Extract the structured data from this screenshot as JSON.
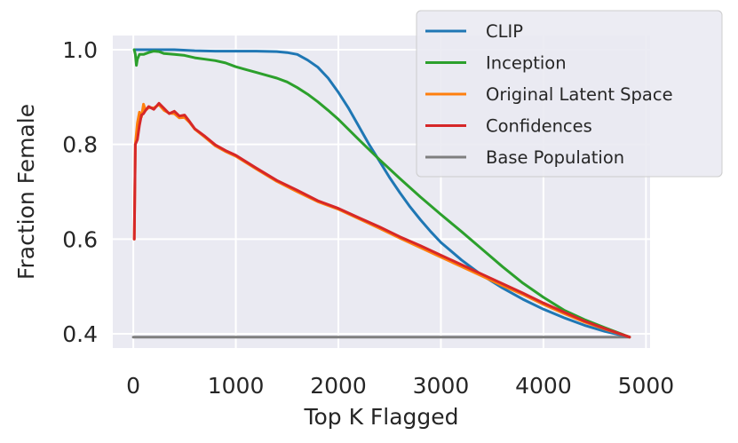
{
  "chart_data": {
    "type": "line",
    "title": "",
    "xlabel": "Top K Flagged",
    "ylabel": "Fraction Female",
    "xlim": [
      -200,
      5040
    ],
    "ylim": [
      0.37,
      1.03
    ],
    "xticks": [
      0,
      1000,
      2000,
      3000,
      4000,
      5000
    ],
    "xtick_labels": [
      "0",
      "1000",
      "2000",
      "3000",
      "4000",
      "5000"
    ],
    "yticks": [
      0.4,
      0.6,
      0.8,
      1.0
    ],
    "ytick_labels": [
      "0.4",
      "0.6",
      "0.8",
      "1.0"
    ],
    "grid": true,
    "legend_position": "upper-right",
    "series": [
      {
        "name": "CLIP",
        "color": "#1f77b4",
        "x": [
          10,
          30,
          100,
          200,
          400,
          600,
          800,
          1000,
          1200,
          1400,
          1500,
          1600,
          1700,
          1800,
          1900,
          2000,
          2100,
          2200,
          2300,
          2400,
          2500,
          2600,
          2700,
          2800,
          2900,
          3000,
          3200,
          3400,
          3600,
          3800,
          4000,
          4200,
          4400,
          4600,
          4840
        ],
        "y": [
          1.0,
          1.0,
          1.0,
          1.0,
          1.0,
          0.998,
          0.997,
          0.997,
          0.997,
          0.996,
          0.994,
          0.99,
          0.978,
          0.963,
          0.94,
          0.91,
          0.876,
          0.838,
          0.8,
          0.765,
          0.73,
          0.698,
          0.668,
          0.641,
          0.616,
          0.593,
          0.556,
          0.524,
          0.497,
          0.473,
          0.452,
          0.434,
          0.418,
          0.405,
          0.393
        ]
      },
      {
        "name": "Inception",
        "color": "#2ca02c",
        "x": [
          10,
          20,
          30,
          40,
          60,
          100,
          150,
          200,
          250,
          300,
          400,
          500,
          600,
          700,
          800,
          900,
          1000,
          1100,
          1200,
          1300,
          1400,
          1500,
          1600,
          1700,
          1800,
          1900,
          2000,
          2200,
          2400,
          2600,
          2800,
          3000,
          3200,
          3400,
          3600,
          3800,
          4000,
          4200,
          4400,
          4600,
          4840
        ],
        "y": [
          1.0,
          0.99,
          0.967,
          0.98,
          0.99,
          0.99,
          0.994,
          0.997,
          0.996,
          0.992,
          0.99,
          0.988,
          0.983,
          0.98,
          0.977,
          0.972,
          0.964,
          0.958,
          0.952,
          0.946,
          0.94,
          0.932,
          0.92,
          0.906,
          0.89,
          0.872,
          0.853,
          0.81,
          0.768,
          0.728,
          0.689,
          0.652,
          0.616,
          0.579,
          0.542,
          0.507,
          0.477,
          0.45,
          0.43,
          0.413,
          0.393
        ]
      },
      {
        "name": "Original Latent Space",
        "color": "#ff7f0e",
        "x": [
          10,
          20,
          40,
          60,
          80,
          100,
          120,
          150,
          200,
          250,
          300,
          350,
          400,
          450,
          500,
          550,
          600,
          700,
          800,
          900,
          1000,
          1200,
          1400,
          1600,
          1800,
          2000,
          2200,
          2400,
          2600,
          2800,
          3000,
          3200,
          3400,
          3600,
          3800,
          4000,
          4200,
          4400,
          4600,
          4840
        ],
        "y": [
          0.6,
          0.8,
          0.845,
          0.868,
          0.858,
          0.885,
          0.872,
          0.878,
          0.877,
          0.884,
          0.872,
          0.866,
          0.865,
          0.856,
          0.857,
          0.846,
          0.832,
          0.815,
          0.797,
          0.785,
          0.775,
          0.748,
          0.722,
          0.7,
          0.679,
          0.663,
          0.643,
          0.623,
          0.602,
          0.582,
          0.562,
          0.542,
          0.522,
          0.502,
          0.483,
          0.462,
          0.443,
          0.425,
          0.41,
          0.393
        ]
      },
      {
        "name": "Confidences",
        "color": "#d62728",
        "x": [
          10,
          20,
          40,
          60,
          80,
          100,
          120,
          150,
          200,
          250,
          300,
          350,
          400,
          450,
          500,
          550,
          600,
          700,
          800,
          900,
          1000,
          1200,
          1400,
          1600,
          1800,
          2000,
          2200,
          2400,
          2600,
          2800,
          3000,
          3200,
          3400,
          3600,
          3800,
          4000,
          4200,
          4400,
          4600,
          4840
        ],
        "y": [
          0.6,
          0.8,
          0.81,
          0.84,
          0.862,
          0.865,
          0.872,
          0.88,
          0.874,
          0.887,
          0.876,
          0.865,
          0.87,
          0.86,
          0.862,
          0.848,
          0.833,
          0.817,
          0.799,
          0.787,
          0.777,
          0.75,
          0.724,
          0.703,
          0.681,
          0.665,
          0.645,
          0.626,
          0.605,
          0.586,
          0.566,
          0.546,
          0.526,
          0.506,
          0.486,
          0.465,
          0.446,
          0.427,
          0.411,
          0.393
        ]
      },
      {
        "name": "Base Population",
        "color": "#7f7f7f",
        "x": [
          0,
          4840
        ],
        "y": [
          0.393,
          0.393
        ]
      }
    ]
  }
}
